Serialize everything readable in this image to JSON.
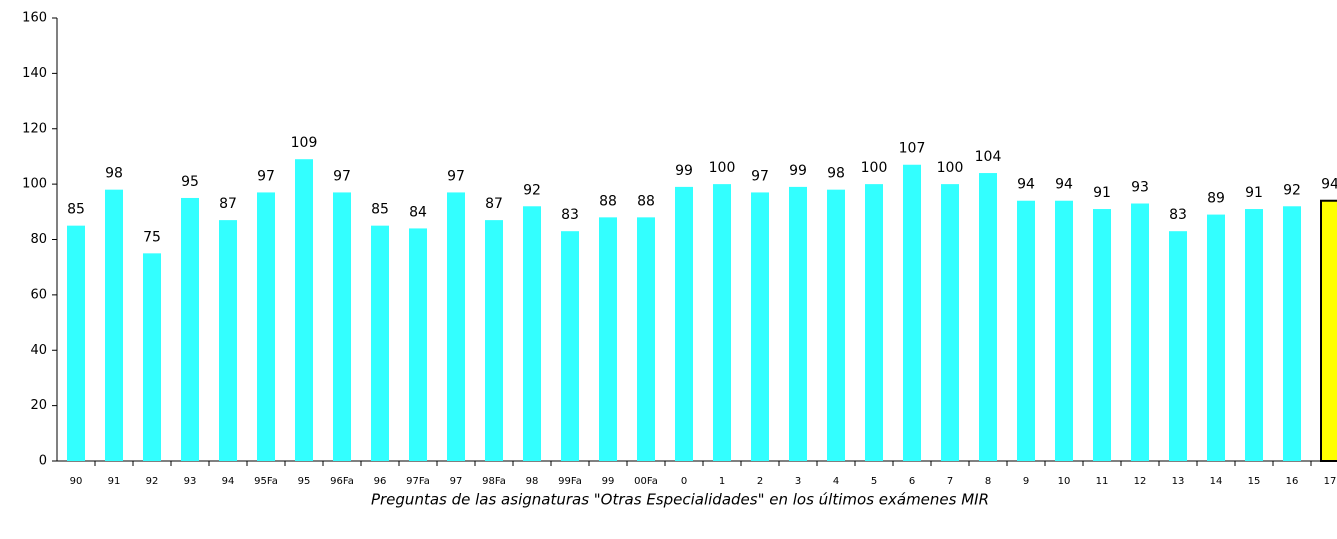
{
  "chart_data": {
    "type": "bar",
    "title": "Preguntas de las asignaturas \"Otras Especialidades\" en los últimos exámenes MIR",
    "categories": [
      "90",
      "91",
      "92",
      "93",
      "94",
      "95Fa",
      "95",
      "96Fa",
      "96",
      "97Fa",
      "97",
      "98Fa",
      "98",
      "99Fa",
      "99",
      "00Fa",
      "0",
      "1",
      "2",
      "3",
      "4",
      "5",
      "6",
      "7",
      "8",
      "9",
      "10",
      "11",
      "12",
      "13",
      "14",
      "15",
      "16",
      "17"
    ],
    "values": [
      85,
      98,
      75,
      95,
      87,
      97,
      109,
      97,
      85,
      84,
      97,
      87,
      92,
      83,
      88,
      88,
      99,
      100,
      97,
      99,
      98,
      100,
      107,
      100,
      104,
      94,
      94,
      91,
      93,
      83,
      89,
      91,
      92,
      94
    ],
    "colors": [
      "#33ffff",
      "#33ffff",
      "#33ffff",
      "#33ffff",
      "#33ffff",
      "#33ffff",
      "#33ffff",
      "#33ffff",
      "#33ffff",
      "#33ffff",
      "#33ffff",
      "#33ffff",
      "#33ffff",
      "#33ffff",
      "#33ffff",
      "#33ffff",
      "#33ffff",
      "#33ffff",
      "#33ffff",
      "#33ffff",
      "#33ffff",
      "#33ffff",
      "#33ffff",
      "#33ffff",
      "#33ffff",
      "#33ffff",
      "#33ffff",
      "#33ffff",
      "#33ffff",
      "#33ffff",
      "#33ffff",
      "#33ffff",
      "#33ffff",
      "#ffff00"
    ],
    "ylim": [
      0,
      160
    ],
    "yticks": [
      0,
      20,
      40,
      60,
      80,
      100,
      120,
      140,
      160
    ],
    "grid": false
  }
}
